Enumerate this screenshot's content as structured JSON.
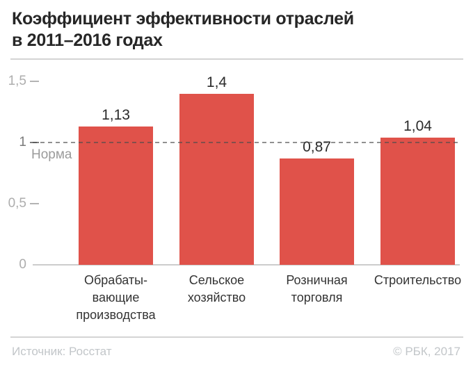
{
  "header": {
    "title": "Коэффициент эффективности отраслей\nв 2011–2016 годах"
  },
  "footer": {
    "source": "Источник: Росстат",
    "copyright": "© РБК, 2017"
  },
  "colors": {
    "bar": "#e0524a",
    "norm_line": "#4b4b4b",
    "title_text": "#262626",
    "tick_text": "#adadad",
    "tick_text_strong": "#7a7a7a",
    "footer_text": "#c2c6c9"
  },
  "chart_data": {
    "type": "bar",
    "title": "Коэффициент эффективности отраслей в 2011–2016 годах",
    "categories": [
      "Обрабаты-\nвающие\nпроизводства",
      "Сельское\nхозяйство",
      "Розничная\nторговля",
      "Строительство"
    ],
    "values": [
      1.13,
      1.4,
      0.87,
      1.04
    ],
    "value_labels": [
      "1,13",
      "1,4",
      "0,87",
      "1,04"
    ],
    "xlabel": "",
    "ylabel": "",
    "ylim": [
      0,
      1.5
    ],
    "yticks": [
      {
        "label": "1,5",
        "value": 1.5,
        "dash": true,
        "strong": false
      },
      {
        "label": "1",
        "value": 1.0,
        "dash": true,
        "strong": true
      },
      {
        "label": "0,5",
        "value": 0.5,
        "dash": true,
        "strong": false
      },
      {
        "label": "0",
        "value": 0.0,
        "dash": false,
        "strong": false
      }
    ],
    "grid": false,
    "legend": "none",
    "norm_line": {
      "value": 1.0,
      "label": "Норма"
    },
    "source_note": "Источник: Росстат"
  }
}
